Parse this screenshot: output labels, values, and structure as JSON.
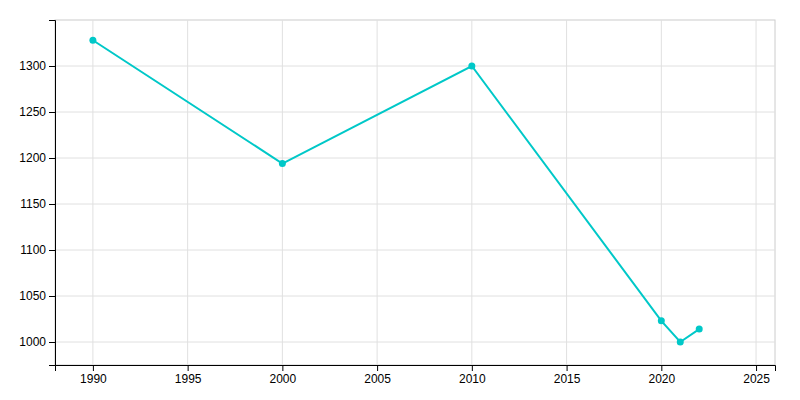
{
  "chart_data": {
    "type": "line",
    "x": [
      1990,
      2000,
      2010,
      2020,
      2021,
      2022
    ],
    "values": [
      1328,
      1194,
      1300,
      1023,
      1000,
      1014
    ],
    "color": "#00c8c8",
    "marker": "circle",
    "xlim": [
      1988,
      2026
    ],
    "ylim": [
      975,
      1350
    ],
    "xticks": [
      1990,
      1995,
      2000,
      2005,
      2010,
      2015,
      2020,
      2025
    ],
    "yticks": [
      1000,
      1050,
      1100,
      1150,
      1200,
      1250,
      1300
    ],
    "grid": true
  }
}
